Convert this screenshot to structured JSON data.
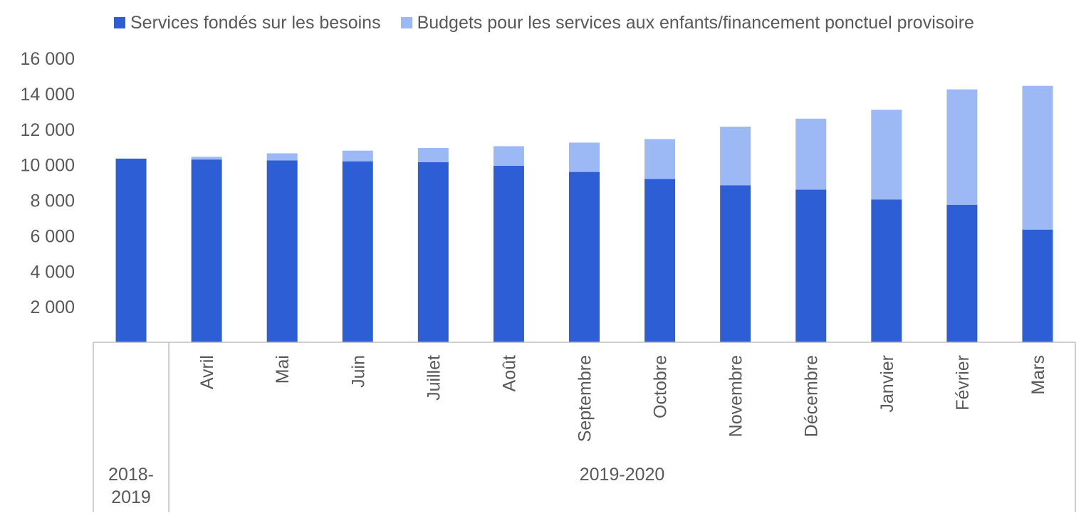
{
  "chart_data": {
    "type": "bar",
    "stacked": true,
    "categories": [
      "",
      "Avril",
      "Mai",
      "Juin",
      "Juillet",
      "Août",
      "Septembre",
      "Octobre",
      "Novembre",
      "Décembre",
      "Janvier",
      "Février",
      "Mars"
    ],
    "groups": [
      {
        "label": "2018-\n2019",
        "lines": [
          "2018-",
          "2019"
        ],
        "start": 0,
        "end": 0
      },
      {
        "label": "2019-2020",
        "lines": [
          "2019-2020"
        ],
        "start": 1,
        "end": 12
      }
    ],
    "series": [
      {
        "name": "Services fondés sur les besoins",
        "color": "#2E5ED6",
        "values": [
          10350,
          10300,
          10250,
          10200,
          10150,
          9950,
          9600,
          9200,
          8850,
          8600,
          8050,
          7750,
          6350
        ]
      },
      {
        "name": "Budgets pour les services aux enfants/financement ponctuel provisoire",
        "color": "#9CB8F5",
        "values": [
          0,
          150,
          400,
          600,
          800,
          1100,
          1650,
          2250,
          3300,
          4000,
          5050,
          6500,
          8100
        ]
      }
    ],
    "yticks": [
      "2 000",
      "4 000",
      "6 000",
      "8 000",
      "10 000",
      "12 000",
      "14 000",
      "16 000"
    ],
    "ylim": [
      0,
      16000
    ],
    "grid": false,
    "legend_position": "top",
    "xlabel": "",
    "ylabel": ""
  }
}
